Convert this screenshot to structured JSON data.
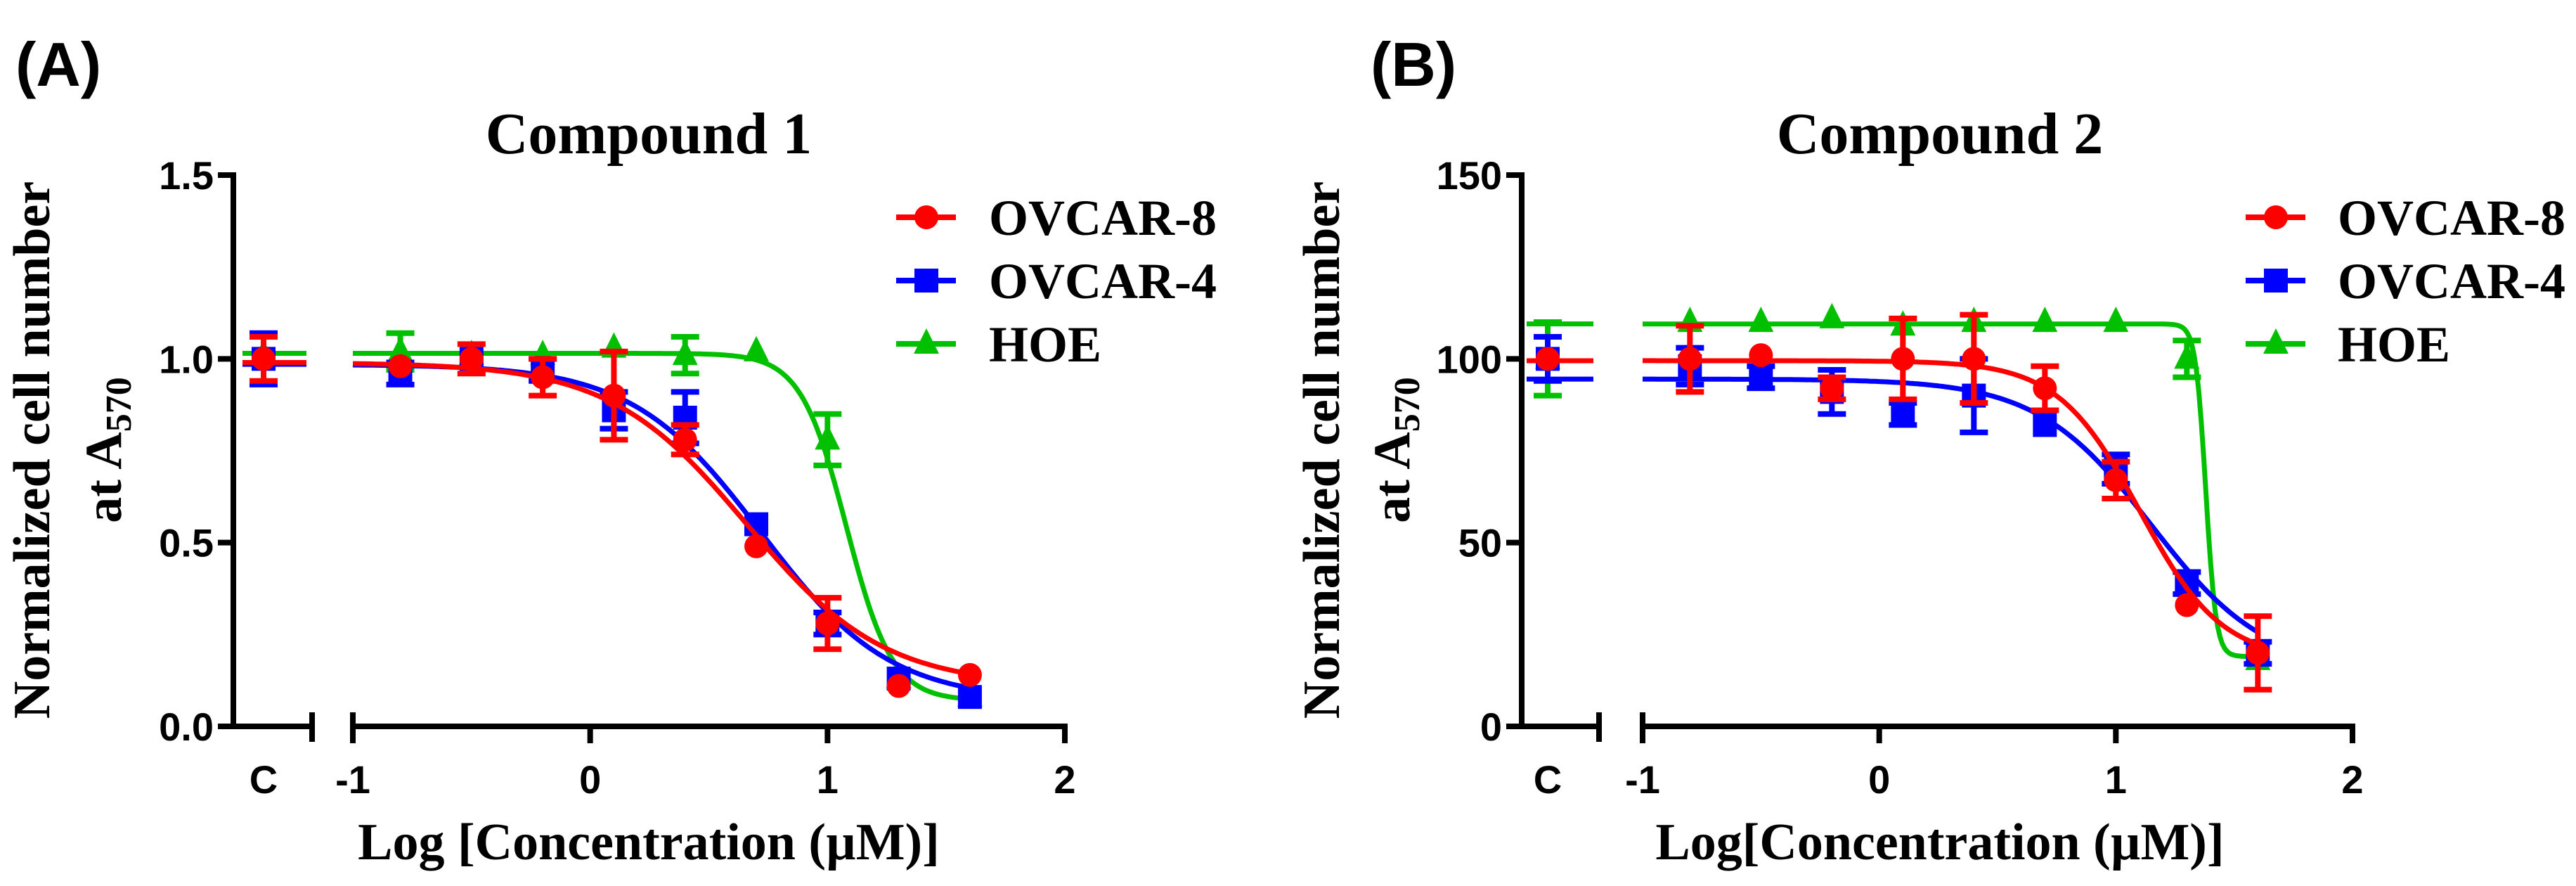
{
  "figure": {
    "panels": [
      {
        "panel_label": "(A)",
        "title": "Compound 1",
        "y_label_line1": "Normalized cell number",
        "y_label_line2": "at A",
        "y_label_sub": "570",
        "x_label": "Log [Concentration (µM)]",
        "y_ticks": [
          "0.0",
          "0.5",
          "1.0",
          "1.5"
        ],
        "x_ticks": [
          "-1",
          "0",
          "1",
          "2"
        ],
        "control_label": "C"
      },
      {
        "panel_label": "(B)",
        "title": "Compound 2",
        "y_label_line1": "Normalized cell number",
        "y_label_line2": "at A",
        "y_label_sub": "570",
        "x_label": "Log[Concentration (µM)]",
        "y_ticks": [
          "0",
          "50",
          "100",
          "150"
        ],
        "x_ticks": [
          "-1",
          "0",
          "1",
          "2"
        ],
        "control_label": "C"
      }
    ]
  },
  "colors": {
    "OVCAR-8": "#ff0000",
    "OVCAR-4": "#0000ff",
    "HOE": "#00c000"
  },
  "chart_data": [
    {
      "type": "scatter",
      "title": "Compound 1",
      "xlabel": "Log [Concentration (µM)]",
      "ylabel": "Normalized cell number at A570",
      "xlim": [
        -1,
        2
      ],
      "ylim": [
        0,
        1.5
      ],
      "y_tick_values": [
        0,
        0.5,
        1.0,
        1.5
      ],
      "x_tick_values": [
        -1,
        0,
        1,
        2
      ],
      "legend_position": "top-right",
      "x": [
        -0.8,
        -0.5,
        -0.2,
        0.1,
        0.4,
        0.7,
        1.0,
        1.3,
        1.6
      ],
      "series": [
        {
          "name": "OVCAR-8",
          "marker": "circle",
          "control": 1.0,
          "control_err": 0.06,
          "values": [
            0.98,
            1.0,
            0.95,
            0.9,
            0.78,
            0.49,
            0.28,
            0.11,
            0.14
          ],
          "errors": [
            0.02,
            0.04,
            0.05,
            0.12,
            0.04,
            0.01,
            0.07,
            0.02,
            0.01
          ],
          "fit": {
            "top": 0.99,
            "bottom": 0.11,
            "logEC50": 0.66,
            "hill": 1.5
          }
        },
        {
          "name": "OVCAR-4",
          "marker": "square",
          "control": 1.0,
          "control_err": 0.07,
          "values": [
            0.96,
            1.0,
            0.97,
            0.86,
            0.84,
            0.55,
            0.28,
            0.13,
            0.08
          ],
          "errors": [
            0.03,
            0.02,
            0.03,
            0.05,
            0.07,
            0.02,
            0.03,
            0.02,
            0.01
          ],
          "fit": {
            "top": 0.985,
            "bottom": 0.07,
            "logEC50": 0.72,
            "hill": 1.6
          }
        },
        {
          "name": "HOE",
          "marker": "triangle",
          "control": 1.01,
          "control_err": 0.02,
          "values": [
            1.02,
            1.01,
            1.01,
            1.03,
            1.01,
            1.02,
            0.78,
            0.13,
            0.08
          ],
          "errors": [
            0.05,
            0.01,
            0.01,
            0.01,
            0.05,
            0.01,
            0.07,
            0.01,
            0.01
          ],
          "fit": {
            "top": 1.015,
            "bottom": 0.07,
            "logEC50": 1.08,
            "hill": 4.5
          }
        }
      ]
    },
    {
      "type": "scatter",
      "title": "Compound 2",
      "xlabel": "Log[Concentration (µM)]",
      "ylabel": "Normalized cell number at A570",
      "xlim": [
        -1,
        2
      ],
      "ylim": [
        0,
        150
      ],
      "y_tick_values": [
        0,
        50,
        100,
        150
      ],
      "x_tick_values": [
        -1,
        0,
        1,
        2
      ],
      "legend_position": "top-right",
      "x": [
        -0.8,
        -0.5,
        -0.2,
        0.1,
        0.4,
        0.7,
        1.0,
        1.3,
        1.6
      ],
      "series": [
        {
          "name": "OVCAR-8",
          "marker": "circle",
          "control": 100,
          "control_err": 2,
          "values": [
            100,
            101,
            92,
            100,
            100,
            92,
            67,
            33,
            20
          ],
          "errors": [
            9,
            1,
            3,
            11,
            12,
            6,
            5,
            1,
            10
          ],
          "fit": {
            "top": 99.5,
            "bottom": 18,
            "logEC50": 1.1,
            "hill": 2.5
          }
        },
        {
          "name": "OVCAR-4",
          "marker": "square",
          "control": 100,
          "control_err": 6,
          "values": [
            98,
            95,
            91,
            85,
            90,
            82,
            70,
            39,
            20
          ],
          "errors": [
            5,
            3,
            6,
            3,
            10,
            2,
            4,
            3,
            3
          ],
          "fit": {
            "top": 94.5,
            "bottom": 15,
            "logEC50": 1.15,
            "hill": 1.8
          }
        },
        {
          "name": "HOE",
          "marker": "triangle",
          "control": 100,
          "control_err": 10,
          "values": [
            110,
            110,
            111,
            109,
            110,
            110,
            110,
            100,
            18
          ],
          "errors": [
            1,
            1,
            1,
            1,
            1,
            1,
            1,
            5,
            1
          ],
          "fit": {
            "top": 109.5,
            "bottom": 19,
            "logEC50": 1.38,
            "hill": 20
          }
        }
      ]
    }
  ]
}
